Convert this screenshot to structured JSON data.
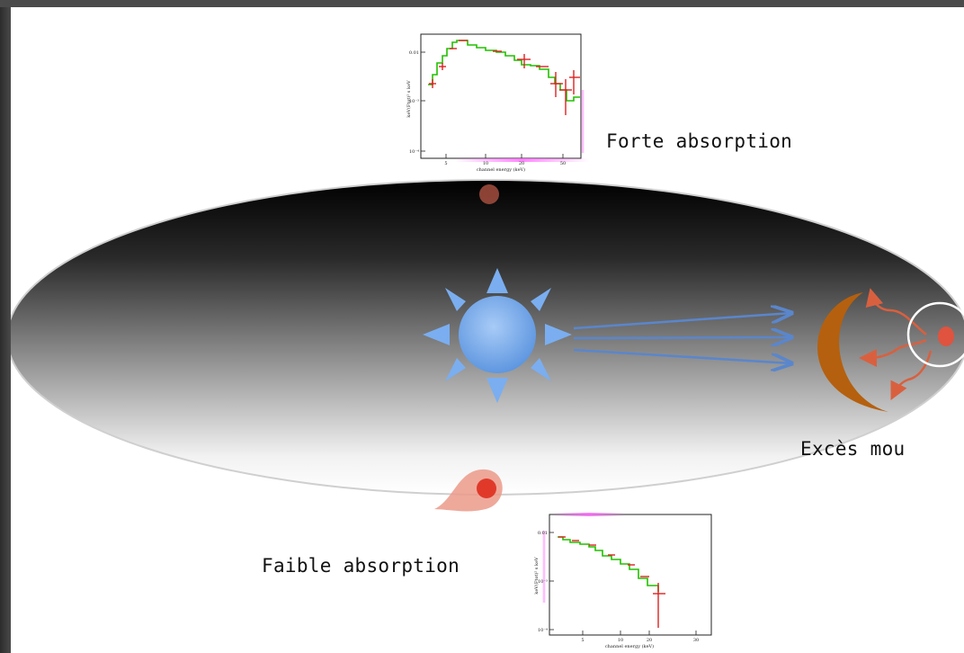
{
  "labels": {
    "top": "Forte absorption",
    "right": "Excès mou",
    "bottom": "Faible absorption"
  },
  "plots": {
    "top": {
      "ylabel": "keV(Ftot)² s keV",
      "xlabel": "channel energy (keV)",
      "yticks": [
        "0.01",
        "10⁻³",
        "10⁻⁴"
      ],
      "xticks": [
        "5",
        "10",
        "20",
        "50"
      ]
    },
    "bottom": {
      "ylabel": "keV(Ftot)² s keV",
      "xlabel": "channel energy (keV)",
      "yticks": [
        "0.01",
        "10⁻³",
        "10⁻⁴"
      ],
      "xticks": [
        "5",
        "10",
        "20",
        "30"
      ]
    }
  },
  "colors": {
    "disk_dark": "#000000",
    "disk_light": "#ffffff",
    "star": "#7aaef0",
    "crescent": "#b5600e",
    "blob": "#e0533e",
    "model_line": "#22c000",
    "data_points": "#dd2222"
  },
  "icons": {
    "star": "sun-icon",
    "crescent": "crescent-icon"
  }
}
